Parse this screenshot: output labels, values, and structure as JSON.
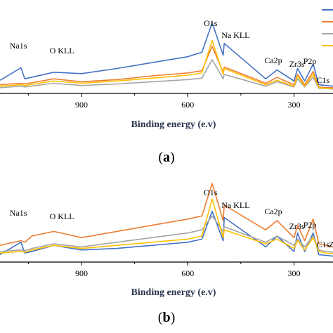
{
  "chart_data": [
    {
      "type": "line",
      "panel_label": "a",
      "title": "",
      "xlabel": "Binding energy (e.v)",
      "ylabel": "",
      "x_reversed": true,
      "xlim": [
        1130,
        190
      ],
      "x_ticks": [
        900,
        600,
        300
      ],
      "grid": false,
      "peak_labels": [
        {
          "text": "Na1s",
          "x": 1071
        },
        {
          "text": "O KLL",
          "x": 978
        },
        {
          "text": "O1s",
          "x": 531
        },
        {
          "text": "Na KLL",
          "x": 497
        },
        {
          "text": "Ca2p",
          "x": 348
        },
        {
          "text": "Zr3s",
          "x": 290
        },
        {
          "text": "P2p",
          "x": 246
        },
        {
          "text": "C1s",
          "x": 229
        }
      ],
      "series": [
        {
          "color": "#4472c4",
          "x": [
            1130,
            1071,
            1060,
            978,
            900,
            800,
            700,
            600,
            560,
            531,
            500,
            497,
            380,
            348,
            300,
            290,
            270,
            246,
            230,
            210,
            190
          ],
          "y": [
            0.14,
            0.31,
            0.16,
            0.25,
            0.23,
            0.3,
            0.38,
            0.46,
            0.52,
            0.92,
            0.48,
            0.64,
            0.16,
            0.28,
            0.13,
            0.3,
            0.13,
            0.36,
            0.08,
            0.07,
            0.06
          ]
        },
        {
          "color": "#ed7d31",
          "x": [
            1130,
            1071,
            1060,
            978,
            900,
            800,
            700,
            600,
            560,
            531,
            500,
            497,
            380,
            348,
            300,
            290,
            270,
            246,
            230,
            210,
            190
          ],
          "y": [
            0.08,
            0.1,
            0.09,
            0.16,
            0.12,
            0.15,
            0.2,
            0.24,
            0.27,
            0.6,
            0.25,
            0.32,
            0.1,
            0.18,
            0.08,
            0.22,
            0.08,
            0.26,
            0.05,
            0.04,
            0.04
          ]
        },
        {
          "color": "#a5a5a5",
          "x": [
            1130,
            1071,
            1060,
            978,
            900,
            800,
            700,
            600,
            560,
            531,
            500,
            497,
            380,
            348,
            300,
            290,
            270,
            246,
            230,
            210,
            190
          ],
          "y": [
            0.04,
            0.06,
            0.05,
            0.1,
            0.07,
            0.09,
            0.12,
            0.15,
            0.17,
            0.42,
            0.16,
            0.22,
            0.06,
            0.12,
            0.05,
            0.16,
            0.05,
            0.18,
            0.03,
            0.03,
            0.02
          ]
        },
        {
          "color": "#ffc000",
          "x": [
            1130,
            1071,
            1060,
            978,
            900,
            800,
            700,
            600,
            560,
            531,
            500,
            497,
            380,
            348,
            300,
            290,
            270,
            246,
            230,
            210,
            190
          ],
          "y": [
            0.06,
            0.08,
            0.07,
            0.13,
            0.1,
            0.13,
            0.17,
            0.21,
            0.24,
            0.68,
            0.22,
            0.3,
            0.08,
            0.14,
            0.06,
            0.2,
            0.06,
            0.22,
            0.04,
            0.03,
            0.03
          ]
        }
      ]
    },
    {
      "type": "line",
      "panel_label": "b",
      "title": "",
      "xlabel": "Binding energy (e.v)",
      "ylabel": "",
      "x_reversed": true,
      "xlim": [
        1130,
        190
      ],
      "x_ticks": [
        900,
        600,
        300
      ],
      "grid": false,
      "peak_labels": [
        {
          "text": "Na1s",
          "x": 1071
        },
        {
          "text": "O KLL",
          "x": 978
        },
        {
          "text": "O1s",
          "x": 531
        },
        {
          "text": "Na KLL",
          "x": 497
        },
        {
          "text": "Ca2p",
          "x": 348
        },
        {
          "text": "Zr3s",
          "x": 290
        },
        {
          "text": "P2p",
          "x": 246
        },
        {
          "text": "C1s",
          "x": 229
        },
        {
          "text": "Z",
          "x": 190
        }
      ],
      "series": [
        {
          "color": "#ed7d31",
          "x": [
            1130,
            1071,
            1060,
            1040,
            978,
            900,
            800,
            700,
            600,
            560,
            531,
            500,
            497,
            380,
            348,
            300,
            290,
            270,
            246,
            230,
            210,
            190
          ],
          "y": [
            0.18,
            0.24,
            0.22,
            0.3,
            0.36,
            0.28,
            0.36,
            0.44,
            0.52,
            0.56,
            0.98,
            0.5,
            0.7,
            0.38,
            0.5,
            0.28,
            0.44,
            0.24,
            0.52,
            0.2,
            0.18,
            0.16
          ]
        },
        {
          "color": "#4472c4",
          "x": [
            1130,
            1071,
            1060,
            1040,
            978,
            900,
            800,
            700,
            600,
            560,
            531,
            500,
            497,
            380,
            348,
            300,
            290,
            270,
            246,
            230,
            210,
            190
          ],
          "y": [
            0.06,
            0.22,
            0.08,
            0.1,
            0.18,
            0.12,
            0.14,
            0.18,
            0.22,
            0.26,
            0.62,
            0.24,
            0.54,
            0.16,
            0.3,
            0.1,
            0.34,
            0.1,
            0.34,
            0.06,
            0.05,
            0.04
          ]
        },
        {
          "color": "#a5a5a5",
          "x": [
            1130,
            1071,
            1060,
            1040,
            978,
            900,
            800,
            700,
            600,
            560,
            531,
            500,
            497,
            380,
            348,
            300,
            290,
            270,
            246,
            230,
            210,
            190
          ],
          "y": [
            0.1,
            0.12,
            0.11,
            0.14,
            0.2,
            0.16,
            0.22,
            0.28,
            0.34,
            0.38,
            0.56,
            0.36,
            0.42,
            0.22,
            0.3,
            0.18,
            0.26,
            0.16,
            0.3,
            0.12,
            0.1,
            0.09
          ]
        },
        {
          "color": "#ffc000",
          "x": [
            1130,
            1071,
            1060,
            1040,
            978,
            900,
            800,
            700,
            600,
            560,
            531,
            500,
            497,
            380,
            348,
            300,
            290,
            270,
            246,
            230,
            210,
            190
          ],
          "y": [
            0.08,
            0.1,
            0.09,
            0.12,
            0.18,
            0.14,
            0.18,
            0.22,
            0.26,
            0.3,
            0.78,
            0.28,
            0.38,
            0.2,
            0.26,
            0.14,
            0.24,
            0.12,
            0.28,
            0.1,
            0.08,
            0.07
          ]
        }
      ]
    }
  ]
}
